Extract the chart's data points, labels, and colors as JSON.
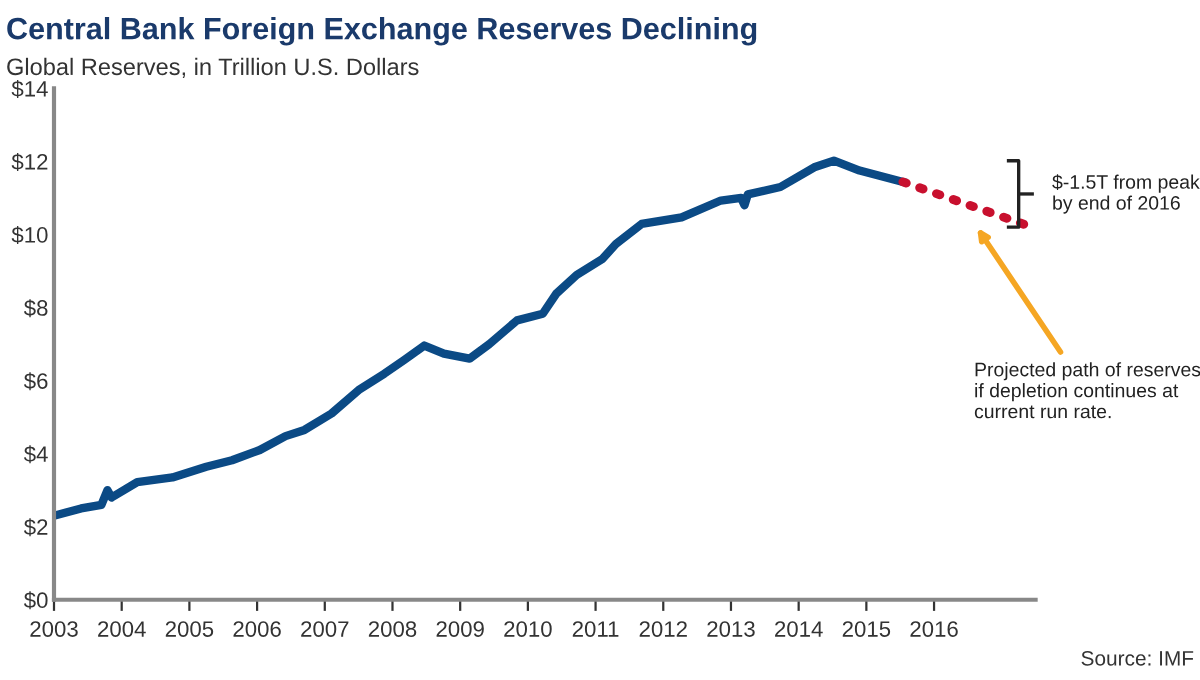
{
  "chart_data": {
    "type": "line",
    "title": "Central Bank Foreign Exchange Reserves Declining",
    "subtitle": "Global Reserves, in Trillion U.S. Dollars",
    "xlim": [
      2003,
      2017.5
    ],
    "xticks": [
      2003,
      2004,
      2005,
      2006,
      2007,
      2008,
      2009,
      2010,
      2011,
      2012,
      2013,
      2014,
      2015,
      2016
    ],
    "ylim": [
      0,
      14
    ],
    "yticks": [
      {
        "value": 0,
        "label": "$0"
      },
      {
        "value": 2,
        "label": "$2"
      },
      {
        "value": 4,
        "label": "$4"
      },
      {
        "value": 6,
        "label": "$6"
      },
      {
        "value": 8,
        "label": "$8"
      },
      {
        "value": 10,
        "label": "$10"
      },
      {
        "value": 12,
        "label": "$12"
      },
      {
        "value": 14,
        "label": "$14"
      }
    ],
    "grid": false,
    "legend": false,
    "series": [
      {
        "color": "#0b4a85",
        "line_style": "solid",
        "x": [
          2003.0,
          2003.4,
          2003.7,
          2003.79,
          2003.85,
          2004.23,
          2004.75,
          2005.25,
          2005.63,
          2006.04,
          2006.42,
          2006.7,
          2007.1,
          2007.5,
          2007.88,
          2008.17,
          2008.47,
          2008.76,
          2009.14,
          2009.43,
          2009.84,
          2010.22,
          2010.42,
          2010.72,
          2011.1,
          2011.3,
          2011.68,
          2012.27,
          2012.85,
          2013.15,
          2013.2,
          2013.25,
          2013.73,
          2014.23,
          2014.52,
          2014.9,
          2015.54
        ],
        "values": [
          2.3,
          2.5,
          2.6,
          3.0,
          2.8,
          3.22,
          3.35,
          3.64,
          3.82,
          4.1,
          4.48,
          4.65,
          5.1,
          5.74,
          6.19,
          6.56,
          6.96,
          6.74,
          6.6,
          7.0,
          7.65,
          7.83,
          8.38,
          8.89,
          9.33,
          9.74,
          10.29,
          10.47,
          10.93,
          11.0,
          10.8,
          11.1,
          11.3,
          11.84,
          12.02,
          11.75,
          11.44
        ]
      },
      {
        "color": "#c8102e",
        "line_style": "dotted",
        "x": [
          2015.54,
          2017.45
        ],
        "values": [
          11.44,
          10.2
        ]
      }
    ],
    "annotations": [
      "$-1.5T from peak\nby end of 2016",
      "Projected path of reserves\nif depletion continues at\ncurrent run rate.",
      "Source: IMF"
    ]
  }
}
